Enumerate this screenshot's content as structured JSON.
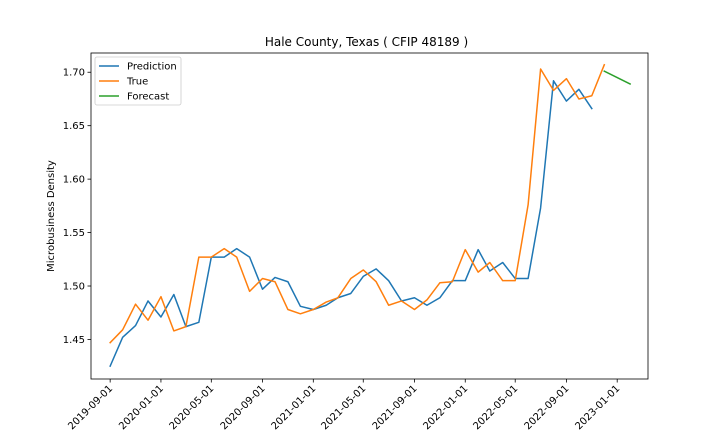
{
  "chart_data": {
    "type": "line",
    "title": "Hale County, Texas ( CFIP 48189 )",
    "xlabel": "",
    "ylabel": "Microbusiness Density",
    "xlim": [
      "2019-07-17",
      "2023-03-16"
    ],
    "ylim": [
      1.413,
      1.718
    ],
    "x_ticks": [
      "2019-09-01",
      "2020-01-01",
      "2020-05-01",
      "2020-09-01",
      "2021-01-01",
      "2021-05-01",
      "2021-09-01",
      "2022-01-01",
      "2022-05-01",
      "2022-09-01",
      "2023-01-01"
    ],
    "y_ticks": [
      1.45,
      1.5,
      1.55,
      1.6,
      1.65,
      1.7
    ],
    "y_tick_labels": [
      "1.45",
      "1.50",
      "1.55",
      "1.60",
      "1.65",
      "1.70"
    ],
    "legend_position": "upper-left",
    "grid": false,
    "series": [
      {
        "name": "Prediction",
        "color": "#1f77b4",
        "x": [
          "2019-09-01",
          "2019-10-01",
          "2019-11-01",
          "2019-12-01",
          "2020-01-01",
          "2020-02-01",
          "2020-03-01",
          "2020-04-01",
          "2020-05-01",
          "2020-06-01",
          "2020-07-01",
          "2020-08-01",
          "2020-09-01",
          "2020-10-01",
          "2020-11-01",
          "2020-12-01",
          "2021-01-01",
          "2021-02-01",
          "2021-03-01",
          "2021-04-01",
          "2021-05-01",
          "2021-06-01",
          "2021-07-01",
          "2021-08-01",
          "2021-09-01",
          "2021-10-01",
          "2021-11-01",
          "2021-12-01",
          "2022-01-01",
          "2022-02-01",
          "2022-03-01",
          "2022-04-01",
          "2022-05-01",
          "2022-06-01",
          "2022-07-01",
          "2022-08-01",
          "2022-09-01",
          "2022-10-01",
          "2022-11-01"
        ],
        "y": [
          1.425,
          1.452,
          1.463,
          1.486,
          1.471,
          1.492,
          1.462,
          1.466,
          1.527,
          1.527,
          1.535,
          1.527,
          1.497,
          1.508,
          1.504,
          1.481,
          1.478,
          1.482,
          1.489,
          1.493,
          1.509,
          1.516,
          1.505,
          1.486,
          1.489,
          1.482,
          1.489,
          1.505,
          1.505,
          1.534,
          1.514,
          1.522,
          1.507,
          1.507,
          1.573,
          1.692,
          1.673,
          1.684,
          1.666
        ]
      },
      {
        "name": "True",
        "color": "#ff7f0e",
        "x": [
          "2019-09-01",
          "2019-10-01",
          "2019-11-01",
          "2019-12-01",
          "2020-01-01",
          "2020-02-01",
          "2020-03-01",
          "2020-04-01",
          "2020-05-01",
          "2020-06-01",
          "2020-07-01",
          "2020-08-01",
          "2020-09-01",
          "2020-10-01",
          "2020-11-01",
          "2020-12-01",
          "2021-01-01",
          "2021-02-01",
          "2021-03-01",
          "2021-04-01",
          "2021-05-01",
          "2021-06-01",
          "2021-07-01",
          "2021-08-01",
          "2021-09-01",
          "2021-10-01",
          "2021-11-01",
          "2021-12-01",
          "2022-01-01",
          "2022-02-01",
          "2022-03-01",
          "2022-04-01",
          "2022-05-01",
          "2022-06-01",
          "2022-07-01",
          "2022-08-01",
          "2022-09-01",
          "2022-10-01",
          "2022-11-01",
          "2022-12-01"
        ],
        "y": [
          1.447,
          1.459,
          1.483,
          1.468,
          1.49,
          1.458,
          1.462,
          1.527,
          1.527,
          1.535,
          1.527,
          1.495,
          1.507,
          1.504,
          1.478,
          1.474,
          1.478,
          1.485,
          1.489,
          1.507,
          1.515,
          1.504,
          1.482,
          1.486,
          1.478,
          1.487,
          1.503,
          1.504,
          1.534,
          1.513,
          1.522,
          1.505,
          1.505,
          1.576,
          1.703,
          1.683,
          1.694,
          1.675,
          1.678,
          1.707
        ]
      },
      {
        "name": "Forecast",
        "color": "#2ca02c",
        "x": [
          "2022-12-01",
          "2023-01-01",
          "2023-02-01"
        ],
        "y": [
          1.701,
          1.695,
          1.689
        ]
      }
    ]
  }
}
